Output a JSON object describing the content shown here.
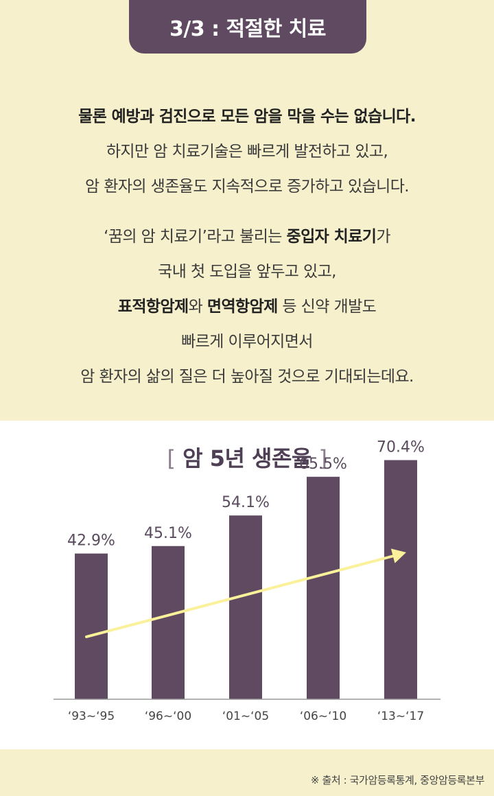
{
  "header": {
    "tab_label": "3/3 : 적절한 치료"
  },
  "intro": {
    "para1": {
      "line1": "물론 예방과 검진으로 모든 암을 막을 수는 없습니다.",
      "line2": "하지만 암 치료기술은 빠르게 발전하고 있고,",
      "line3": "암 환자의 생존율도 지속적으로 증가하고 있습니다."
    },
    "para2": {
      "line1_a": "‘꿈의 암 치료기’라고 불리는 ",
      "line1_b": "중입자 치료기",
      "line1_c": "가",
      "line2": "국내 첫 도입을 앞두고 있고,",
      "line3_a": "표적항암제",
      "line3_b": "와 ",
      "line3_c": "면역항암제",
      "line3_d": " 등 신약 개발도",
      "line4": "빠르게 이루어지면서",
      "line5": "암 환자의 삶의 질은 더 높아질 것으로 기대되는데요."
    }
  },
  "chart_data": {
    "type": "bar",
    "title": "암 5년 생존율",
    "categories": [
      "‘93~‘95",
      "‘96~‘00",
      "‘01~‘05",
      "‘06~‘10",
      "‘13~‘17"
    ],
    "values": [
      42.9,
      45.1,
      54.1,
      65.5,
      70.4
    ],
    "value_labels": [
      "42.9%",
      "45.1%",
      "54.1%",
      "65.5%",
      "70.4%"
    ],
    "xlabel": "",
    "ylabel": "",
    "ylim": [
      0,
      82
    ],
    "grid": false,
    "annotations": [
      "upward trend arrow"
    ],
    "colors": {
      "bar": "#5f4a62",
      "arrow": "#faf19a",
      "label": "#5a4a5e"
    }
  },
  "footer": {
    "source": "※ 출처 : 국가암등록통계, 중앙암등록본부"
  }
}
